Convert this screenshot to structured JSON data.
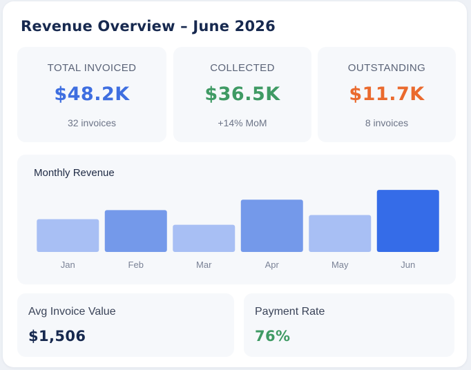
{
  "header": {
    "title": "Revenue Overview – June 2026"
  },
  "kpis": [
    {
      "label": "TOTAL INVOICED",
      "value": "$48.2K",
      "sub": "32 invoices",
      "color": "#3e6ee0"
    },
    {
      "label": "COLLECTED",
      "value": "$36.5K",
      "sub": "+14% MoM",
      "color": "#3f9a64"
    },
    {
      "label": "OUTSTANDING",
      "value": "$11.7K",
      "sub": "8 invoices",
      "color": "#ea6a2e"
    }
  ],
  "chart": {
    "title": "Monthly Revenue"
  },
  "chart_data": {
    "type": "bar",
    "title": "Monthly Revenue",
    "categories": [
      "Jan",
      "Feb",
      "Mar",
      "Apr",
      "May",
      "Jun"
    ],
    "values": [
      47,
      60,
      39,
      75,
      53,
      89
    ],
    "ylim": [
      0,
      100
    ],
    "colors": [
      "#a8bff4",
      "#7499ea",
      "#a8bff4",
      "#7499ea",
      "#a8bff4",
      "#356ce8"
    ],
    "grid": false,
    "legend": "none",
    "xlabel": "",
    "ylabel": ""
  },
  "stats": [
    {
      "label": "Avg Invoice Value",
      "value": "$1,506",
      "color": "#17294f"
    },
    {
      "label": "Payment Rate",
      "value": "76%",
      "color": "#3f9a64"
    }
  ]
}
